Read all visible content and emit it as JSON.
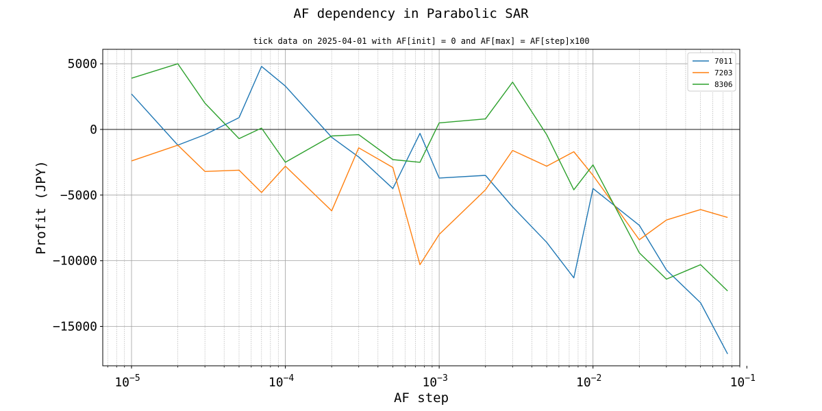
{
  "chart_data": {
    "type": "line",
    "title": "AF dependency in Parabolic SAR",
    "subtitle": "tick data on 2025-04-01 with AF[init] = 0 and AF[max] = AF[step]x100",
    "xlabel": "AF step",
    "ylabel": "Profit (JPY)",
    "xscale": "log",
    "xlim": [
      6.5e-06,
      0.09
    ],
    "ylim": [
      -18000,
      6100
    ],
    "x_ticks": [
      {
        "base": "10",
        "exp": "−5",
        "value": 1e-05
      },
      {
        "base": "10",
        "exp": "−4",
        "value": 0.0001
      },
      {
        "base": "10",
        "exp": "−3",
        "value": 0.001
      },
      {
        "base": "10",
        "exp": "−2",
        "value": 0.01
      },
      {
        "base": "10",
        "exp": "−1",
        "value": 0.1
      }
    ],
    "y_ticks": [
      {
        "label": "5000",
        "value": 5000
      },
      {
        "label": "0",
        "value": 0
      },
      {
        "label": "−5000",
        "value": -5000
      },
      {
        "label": "−10000",
        "value": -10000
      },
      {
        "label": "−15000",
        "value": -15000
      }
    ],
    "grid": true,
    "zero_line": true,
    "legend_position": "top-right",
    "x": [
      1e-05,
      2e-05,
      3e-05,
      5e-05,
      7e-05,
      0.0001,
      0.0002,
      0.0003,
      0.0005,
      0.00075,
      0.001,
      0.002,
      0.003,
      0.005,
      0.0075,
      0.01,
      0.02,
      0.03,
      0.05,
      0.075
    ],
    "series": [
      {
        "name": "7011",
        "color": "#1f77b4",
        "values": [
          2700,
          -1200,
          -400,
          900,
          4800,
          3300,
          -600,
          -2100,
          -4500,
          -300,
          -3700,
          -3500,
          -5900,
          -8600,
          -11300,
          -4500,
          -7300,
          -10700,
          -13200,
          -17100
        ]
      },
      {
        "name": "7203",
        "color": "#ff7f0e",
        "values": [
          -2400,
          -1200,
          -3200,
          -3100,
          -4800,
          -2800,
          -6200,
          -1400,
          -2900,
          -10300,
          -8000,
          -4600,
          -1600,
          -2800,
          -1700,
          -3500,
          -8400,
          -6900,
          -6100,
          -6700
        ]
      },
      {
        "name": "8306",
        "color": "#2ca02c",
        "values": [
          3900,
          5000,
          2000,
          -700,
          100,
          -2500,
          -500,
          -400,
          -2300,
          -2500,
          500,
          800,
          3600,
          -400,
          -4600,
          -2700,
          -9400,
          -11400,
          -10300,
          -12300
        ]
      }
    ]
  }
}
